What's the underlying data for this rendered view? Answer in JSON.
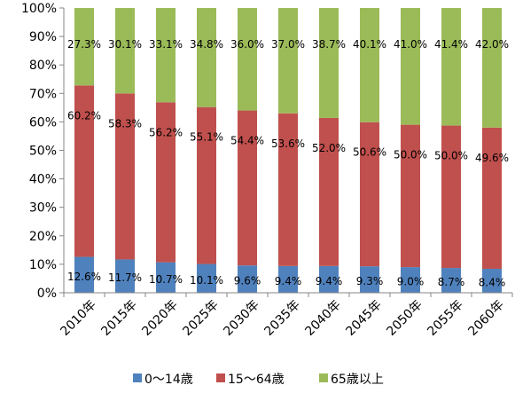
{
  "chart_data": {
    "type": "bar",
    "stacked": "percent",
    "categories": [
      "2010年",
      "2015年",
      "2020年",
      "2025年",
      "2030年",
      "2035年",
      "2040年",
      "2045年",
      "2050年",
      "2055年",
      "2060年"
    ],
    "series": [
      {
        "name": "0〜14歳",
        "color": "#4f81bd",
        "values": [
          12.6,
          11.7,
          10.7,
          10.1,
          9.6,
          9.4,
          9.4,
          9.3,
          9.0,
          8.7,
          8.4
        ],
        "labels": [
          "12.6%",
          "11.7%",
          "10.7%",
          "10.1%",
          "9.6%",
          "9.4%",
          "9.4%",
          "9.3%",
          "9.0%",
          "8.7%",
          "8.4%"
        ]
      },
      {
        "name": "15〜64歳",
        "color": "#c0504d",
        "values": [
          60.2,
          58.3,
          56.2,
          55.1,
          54.4,
          53.6,
          52.0,
          50.6,
          50.0,
          50.0,
          49.6
        ],
        "labels": [
          "60.2%",
          "58.3%",
          "56.2%",
          "55.1%",
          "54.4%",
          "53.6%",
          "52.0%",
          "50.6%",
          "50.0%",
          "50.0%",
          "49.6%"
        ]
      },
      {
        "name": "65歳以上",
        "color": "#9bbb59",
        "values": [
          27.3,
          30.1,
          33.1,
          34.8,
          36.0,
          37.0,
          38.7,
          40.1,
          41.0,
          41.4,
          42.0
        ],
        "labels": [
          "27.3%",
          "30.1%",
          "33.1%",
          "34.8%",
          "36.0%",
          "37.0%",
          "38.7%",
          "40.1%",
          "41.0%",
          "41.4%",
          "42.0%"
        ]
      }
    ],
    "ylim": [
      0,
      100
    ],
    "yticks": [
      "0%",
      "10%",
      "20%",
      "30%",
      "40%",
      "50%",
      "60%",
      "70%",
      "80%",
      "90%",
      "100%"
    ],
    "grid": false,
    "legend_position": "bottom"
  }
}
